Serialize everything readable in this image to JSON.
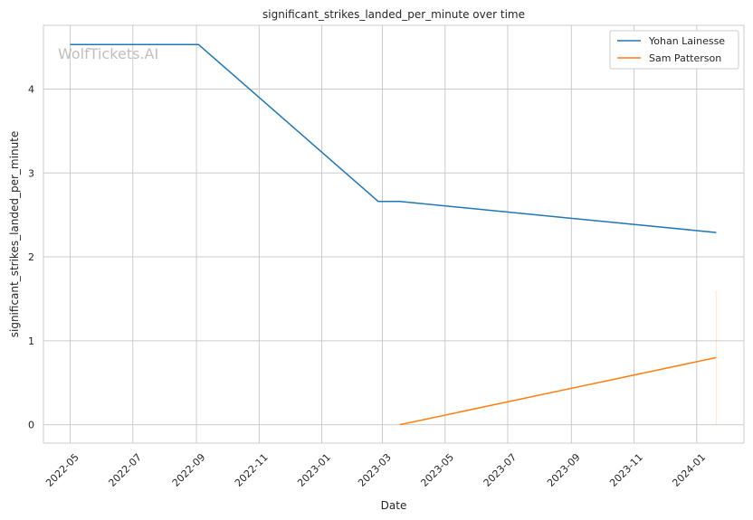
{
  "chart_data": {
    "type": "line",
    "title": "significant_strikes_landed_per_minute over time",
    "xlabel": "Date",
    "ylabel": "significant_strikes_landed_per_minute",
    "watermark": "WolfTickets.AI",
    "xlim": [
      "2022-04-05",
      "2024-02-16"
    ],
    "ylim": [
      -0.22,
      4.76
    ],
    "x_ticks": [
      {
        "date": "2022-05-01",
        "label": "2022-05"
      },
      {
        "date": "2022-07-01",
        "label": "2022-07"
      },
      {
        "date": "2022-09-01",
        "label": "2022-09"
      },
      {
        "date": "2022-11-01",
        "label": "2022-11"
      },
      {
        "date": "2023-01-01",
        "label": "2023-01"
      },
      {
        "date": "2023-03-01",
        "label": "2023-03"
      },
      {
        "date": "2023-05-01",
        "label": "2023-05"
      },
      {
        "date": "2023-07-01",
        "label": "2023-07"
      },
      {
        "date": "2023-09-01",
        "label": "2023-09"
      },
      {
        "date": "2023-11-01",
        "label": "2023-11"
      },
      {
        "date": "2024-01-01",
        "label": "2024-01"
      }
    ],
    "y_ticks": [
      0,
      1,
      2,
      3,
      4
    ],
    "grid": true,
    "legend_position": "top-right",
    "series": [
      {
        "name": "Yohan Lainesse",
        "color": "#1f77b4",
        "points": [
          {
            "x": "2022-05-01",
            "y": 4.53
          },
          {
            "x": "2022-09-03",
            "y": 4.53
          },
          {
            "x": "2023-02-25",
            "y": 2.66
          },
          {
            "x": "2023-03-18",
            "y": 2.66
          },
          {
            "x": "2024-01-20",
            "y": 2.29
          }
        ]
      },
      {
        "name": "Sam Patterson",
        "color": "#ff7f0e",
        "points": [
          {
            "x": "2023-03-18",
            "y": 0.0
          },
          {
            "x": "2024-01-20",
            "y": 0.8
          }
        ],
        "band": {
          "x": "2024-01-20",
          "low": 0.0,
          "high": 1.6
        }
      }
    ]
  }
}
